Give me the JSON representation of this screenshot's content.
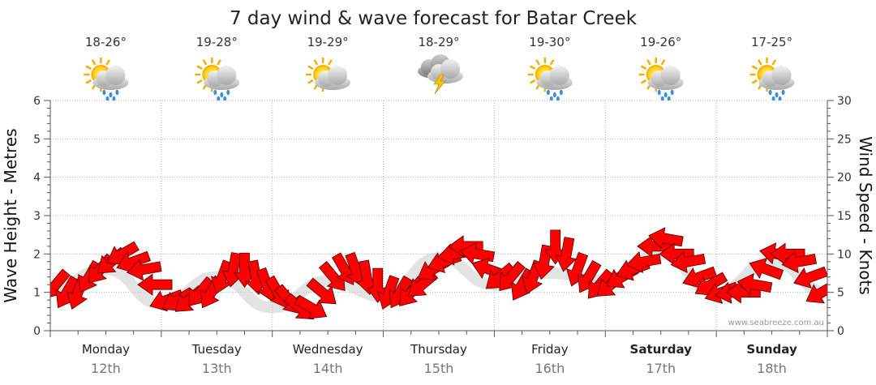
{
  "chart_data": {
    "type": "line",
    "title": "7 day wind & wave forecast for Batar Creek",
    "ylabel_left": "Wave Height - Metres",
    "ylabel_right": "Wind Speed - Knots",
    "ylim_left": [
      0,
      6
    ],
    "ylim_right": [
      0,
      30
    ],
    "left_ticks": [
      "0",
      "1",
      "2",
      "3",
      "4",
      "5",
      "6"
    ],
    "right_ticks": [
      "0",
      "5",
      "10",
      "15",
      "20",
      "25",
      "30"
    ],
    "credit": "www.seabreeze.com.au",
    "days": [
      {
        "name": "Monday",
        "num": "12th",
        "temp": "18-26°",
        "icon": "sun-cloud-rain-icon",
        "bold": false
      },
      {
        "name": "Tuesday",
        "num": "13th",
        "temp": "19-28°",
        "icon": "sun-cloud-rain-icon",
        "bold": false
      },
      {
        "name": "Wednesday",
        "num": "14th",
        "temp": "19-29°",
        "icon": "sun-cloud-icon",
        "bold": false
      },
      {
        "name": "Thursday",
        "num": "15th",
        "temp": "18-29°",
        "icon": "storm-icon",
        "bold": false
      },
      {
        "name": "Friday",
        "num": "16th",
        "temp": "19-30°",
        "icon": "sun-cloud-rain-icon",
        "bold": false
      },
      {
        "name": "Saturday",
        "num": "17th",
        "temp": "19-26°",
        "icon": "sun-cloud-rain-icon",
        "bold": true
      },
      {
        "name": "Sunday",
        "num": "18th",
        "temp": "17-25°",
        "icon": "sun-cloud-rain-icon",
        "bold": true
      }
    ],
    "series": [
      {
        "name": "Wind Speed",
        "axis": "right",
        "color": "#ff0000",
        "x_days": [
          0.05,
          0.15,
          0.25,
          0.35,
          0.45,
          0.55,
          0.65,
          0.75,
          0.85,
          0.95,
          1.05,
          1.15,
          1.25,
          1.35,
          1.45,
          1.55,
          1.65,
          1.75,
          1.85,
          1.95,
          2.05,
          2.15,
          2.25,
          2.35,
          2.45,
          2.55,
          2.65,
          2.75,
          2.85,
          2.95,
          3.05,
          3.15,
          3.25,
          3.35,
          3.45,
          3.55,
          3.65,
          3.75,
          3.85,
          3.95,
          4.05,
          4.15,
          4.25,
          4.35,
          4.45,
          4.55,
          4.65,
          4.75,
          4.85,
          4.95,
          5.05,
          5.15,
          5.25,
          5.35,
          5.45,
          5.55,
          5.65,
          5.75,
          5.85,
          5.95,
          6.05,
          6.15,
          6.25,
          6.35,
          6.45,
          6.55,
          6.65,
          6.75,
          6.85,
          6.95
        ],
        "values": [
          6,
          5,
          5,
          7,
          8,
          9,
          10,
          9,
          8,
          6,
          4,
          4,
          4,
          5,
          5,
          7,
          8,
          8,
          7,
          6,
          5,
          4,
          3,
          3,
          5,
          7,
          8,
          8,
          7,
          6,
          5,
          5,
          5,
          6,
          8,
          9,
          10,
          11,
          10,
          8,
          7,
          7,
          6,
          7,
          9,
          11,
          10,
          8,
          7,
          6,
          6,
          7,
          8,
          9,
          11,
          12,
          10,
          9,
          7,
          6,
          5,
          5,
          5,
          6,
          8,
          10,
          10,
          9,
          7,
          5
        ],
        "directions_deg": [
          220,
          210,
          200,
          210,
          220,
          230,
          240,
          250,
          260,
          270,
          250,
          240,
          230,
          220,
          210,
          200,
          190,
          180,
          170,
          160,
          150,
          140,
          130,
          120,
          130,
          140,
          150,
          160,
          170,
          180,
          200,
          210,
          220,
          230,
          240,
          250,
          260,
          270,
          280,
          290,
          230,
          220,
          210,
          200,
          190,
          180,
          190,
          200,
          210,
          220,
          230,
          240,
          250,
          260,
          270,
          280,
          270,
          260,
          250,
          240,
          250,
          260,
          270,
          280,
          290,
          280,
          270,
          260,
          250,
          240
        ]
      },
      {
        "name": "Wave Height",
        "axis": "left",
        "color": "#cccccc",
        "x_days": [
          0.0,
          0.5,
          1.0,
          1.5,
          2.0,
          2.5,
          3.0,
          3.5,
          4.0,
          4.5,
          5.0,
          5.5,
          6.0,
          6.5,
          7.0
        ],
        "values": [
          1.1,
          1.6,
          0.7,
          1.4,
          0.6,
          1.3,
          0.9,
          1.9,
          1.2,
          1.5,
          1.3,
          2.0,
          1.0,
          1.8,
          1.0
        ]
      }
    ]
  }
}
